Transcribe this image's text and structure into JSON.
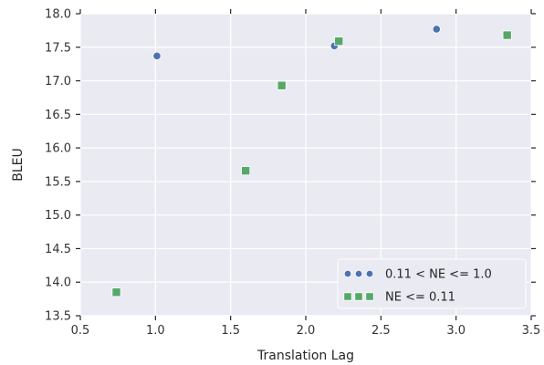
{
  "chart_data": {
    "type": "scatter",
    "xlabel": "Translation Lag",
    "ylabel": "BLEU",
    "xlim": [
      0.5,
      3.5
    ],
    "ylim": [
      13.5,
      18.0
    ],
    "xticks": [
      "0.5",
      "1.0",
      "1.5",
      "2.0",
      "2.5",
      "3.0",
      "3.5"
    ],
    "yticks": [
      "13.5",
      "14.0",
      "14.5",
      "15.0",
      "15.5",
      "16.0",
      "16.5",
      "17.0",
      "17.5",
      "18.0"
    ],
    "grid": true,
    "legend_position": "bottom-right",
    "series": [
      {
        "name": "0.11 < NE <= 1.0",
        "marker": "circle",
        "color": "#4c72b0",
        "points": [
          {
            "x": 1.01,
            "y": 17.37
          },
          {
            "x": 2.19,
            "y": 17.52
          },
          {
            "x": 2.87,
            "y": 17.77
          }
        ]
      },
      {
        "name": "NE <= 0.11",
        "marker": "square",
        "color": "#55a868",
        "points": [
          {
            "x": 0.74,
            "y": 13.85
          },
          {
            "x": 1.6,
            "y": 15.66
          },
          {
            "x": 1.84,
            "y": 16.93
          },
          {
            "x": 2.22,
            "y": 17.59
          },
          {
            "x": 3.34,
            "y": 17.68
          }
        ]
      }
    ]
  },
  "colors": {
    "plot_background": "#eaeaf2",
    "grid": "#ffffff",
    "tick": "#262626"
  }
}
